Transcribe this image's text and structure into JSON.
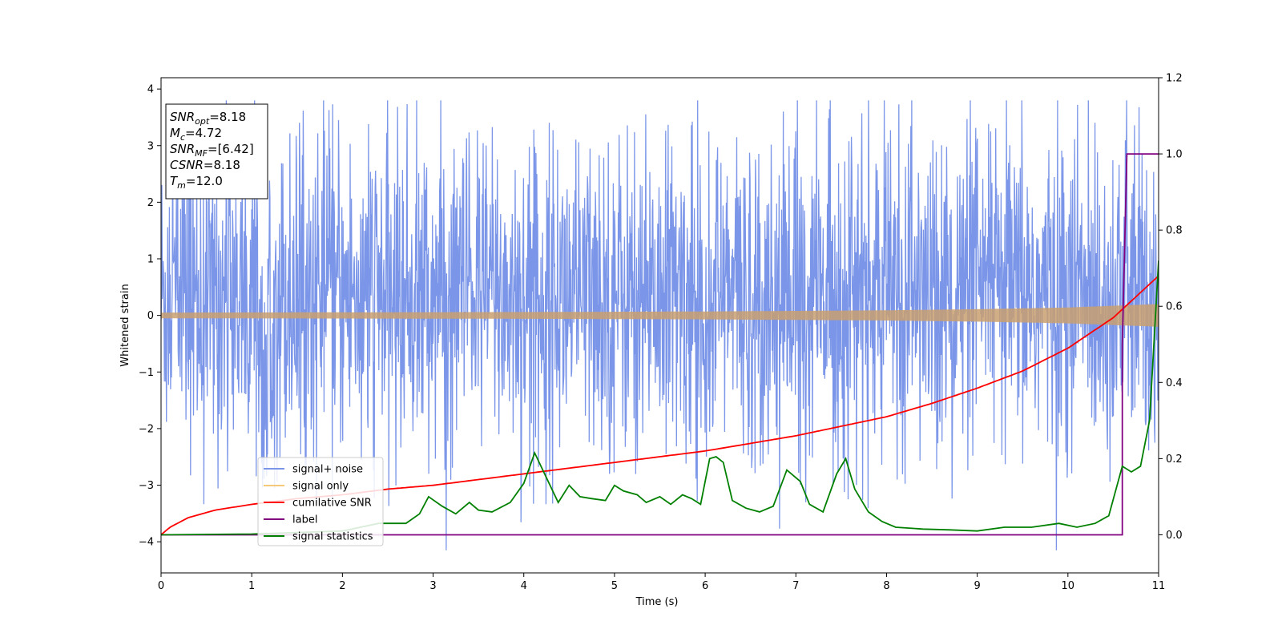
{
  "chart_data": {
    "type": "line",
    "xlabel": "Time (s)",
    "ylabel_left": "Whitened strain",
    "ylabel_right": "",
    "xlim": [
      0,
      11
    ],
    "ylim_left": [
      -4.55,
      4.2
    ],
    "ylim_right": [
      -0.1,
      1.2
    ],
    "x_ticks": [
      "0",
      "1",
      "2",
      "3",
      "4",
      "5",
      "6",
      "7",
      "8",
      "9",
      "10",
      "11"
    ],
    "y_left_ticks": [
      {
        "value": 4,
        "label": "4"
      },
      {
        "value": 3,
        "label": "3"
      },
      {
        "value": 2,
        "label": "2"
      },
      {
        "value": 1,
        "label": "1"
      },
      {
        "value": 0,
        "label": "0"
      },
      {
        "value": -1,
        "label": "−1"
      },
      {
        "value": -2,
        "label": "−2"
      },
      {
        "value": -3,
        "label": "−3"
      },
      {
        "value": -4,
        "label": "−4"
      }
    ],
    "y_right_ticks": [
      {
        "value": 1.2,
        "label": "1.2"
      },
      {
        "value": 1.0,
        "label": "1.0"
      },
      {
        "value": 0.8,
        "label": "0.8"
      },
      {
        "value": 0.6,
        "label": "0.6"
      },
      {
        "value": 0.4,
        "label": "0.4"
      },
      {
        "value": 0.2,
        "label": "0.2"
      },
      {
        "value": 0.0,
        "label": "0.0"
      }
    ],
    "annotation_box": [
      {
        "base": "SNR",
        "sub": "opt",
        "rest": "=8.18"
      },
      {
        "base": "M",
        "sub": "c",
        "rest": "=4.72"
      },
      {
        "base": "SNR",
        "sub": "MF",
        "rest": "=[6.42]"
      },
      {
        "base": "CSNR",
        "sub": "",
        "rest": "=8.18"
      },
      {
        "base": "T",
        "sub": "m",
        "rest": "=12.0"
      }
    ],
    "legend": {
      "placement": "lower-left",
      "entries": [
        {
          "label": "signal+ noise",
          "color": "#7b96e8"
        },
        {
          "label": "signal only",
          "color": "#f5c97a"
        },
        {
          "label": "cumilative SNR",
          "color": "#ff0000"
        },
        {
          "label": "label",
          "color": "#800080"
        },
        {
          "label": "signal statistics",
          "color": "#008000"
        }
      ]
    },
    "series": [
      {
        "name": "signal+ noise",
        "axis": "left",
        "color": "#7b96e8",
        "description_kind": "dense noise",
        "envelope_typical": [
          -1.6,
          2.3
        ],
        "extremes": {
          "max": 3.8,
          "min": -4.15
        }
      },
      {
        "name": "signal only",
        "axis": "left",
        "color": "#c9a070",
        "amplitude_x": [
          0,
          2,
          4,
          6,
          8,
          9,
          10,
          11
        ],
        "amplitude": [
          0.05,
          0.055,
          0.06,
          0.07,
          0.09,
          0.11,
          0.14,
          0.2
        ]
      },
      {
        "name": "cumilative SNR",
        "axis": "right",
        "color": "#ff0000",
        "x": [
          0,
          0.1,
          0.3,
          0.6,
          1,
          1.5,
          2,
          2.5,
          3,
          3.5,
          4,
          4.5,
          5,
          5.5,
          6,
          6.5,
          7,
          7.5,
          8,
          8.5,
          9,
          9.5,
          10,
          10.5,
          11
        ],
        "y": [
          0.0,
          0.02,
          0.045,
          0.065,
          0.08,
          0.095,
          0.105,
          0.12,
          0.13,
          0.145,
          0.16,
          0.175,
          0.19,
          0.205,
          0.22,
          0.24,
          0.26,
          0.285,
          0.31,
          0.345,
          0.385,
          0.43,
          0.49,
          0.57,
          0.68
        ]
      },
      {
        "name": "label",
        "axis": "right",
        "color": "#800080",
        "x": [
          0,
          10.6,
          10.6,
          10.65,
          11
        ],
        "y": [
          0,
          0,
          0.5,
          1.0,
          1.0
        ]
      },
      {
        "name": "signal statistics",
        "axis": "right",
        "color": "#008000",
        "x": [
          0,
          1,
          2,
          2.4,
          2.7,
          2.85,
          2.95,
          3.1,
          3.25,
          3.4,
          3.5,
          3.65,
          3.85,
          4.0,
          4.12,
          4.25,
          4.38,
          4.5,
          4.62,
          4.75,
          4.9,
          5.0,
          5.1,
          5.25,
          5.35,
          5.5,
          5.62,
          5.75,
          5.85,
          5.95,
          6.05,
          6.12,
          6.2,
          6.3,
          6.45,
          6.6,
          6.75,
          6.9,
          7.05,
          7.15,
          7.3,
          7.45,
          7.55,
          7.65,
          7.8,
          7.95,
          8.1,
          8.4,
          8.7,
          9.0,
          9.3,
          9.6,
          9.9,
          10.1,
          10.3,
          10.45,
          10.6,
          10.7,
          10.8,
          10.9,
          11.0
        ],
        "y": [
          0.0,
          0.002,
          0.01,
          0.03,
          0.03,
          0.055,
          0.1,
          0.075,
          0.055,
          0.085,
          0.065,
          0.06,
          0.085,
          0.135,
          0.215,
          0.15,
          0.085,
          0.13,
          0.1,
          0.095,
          0.09,
          0.13,
          0.115,
          0.105,
          0.085,
          0.1,
          0.08,
          0.105,
          0.095,
          0.08,
          0.2,
          0.205,
          0.19,
          0.09,
          0.07,
          0.06,
          0.075,
          0.17,
          0.14,
          0.08,
          0.06,
          0.16,
          0.2,
          0.12,
          0.06,
          0.035,
          0.02,
          0.015,
          0.013,
          0.01,
          0.02,
          0.02,
          0.03,
          0.02,
          0.03,
          0.05,
          0.18,
          0.165,
          0.18,
          0.3,
          0.72
        ]
      }
    ]
  }
}
